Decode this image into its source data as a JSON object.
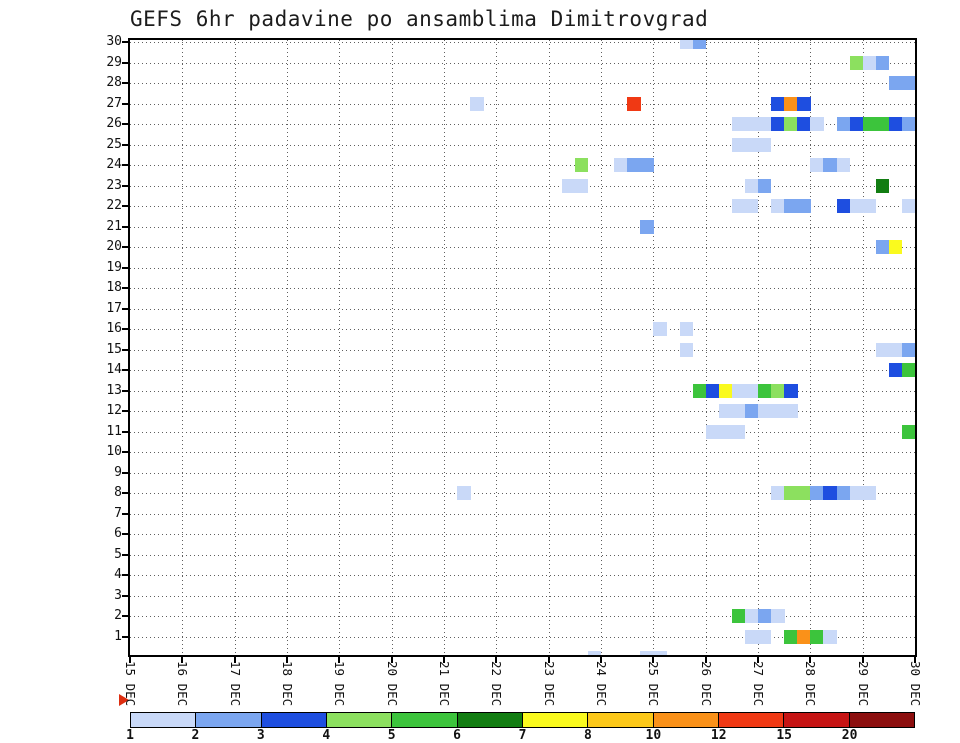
{
  "title": "GEFS 6hr padavine po ansamblima Dimitrovgrad",
  "chart_data": {
    "type": "heatmap",
    "title": "GEFS 6hr padavine po ansamblima Dimitrovgrad",
    "description": "6-hourly precipitation per GEFS ensemble member",
    "grid": true,
    "x_axis": {
      "tick_labels": [
        "15 DEC",
        "16 DEC",
        "17 DEC",
        "18 DEC",
        "19 DEC",
        "20 DEC",
        "21 DEC",
        "22 DEC",
        "23 DEC",
        "24 DEC",
        "25 DEC",
        "26 DEC",
        "27 DEC",
        "28 DEC",
        "29 DEC",
        "30 DEC"
      ],
      "steps_per_day": 4,
      "step_hours": 6,
      "total_steps": 60
    },
    "y_axis": {
      "tick_labels": [
        "30",
        "29",
        "28",
        "27",
        "26",
        "25",
        "24",
        "23",
        "22",
        "21",
        "20",
        "19",
        "18",
        "17",
        "16",
        "15",
        "14",
        "13",
        "12",
        "11",
        "10",
        "9",
        "8",
        "7",
        "6",
        "5",
        "4",
        "3",
        "2",
        "1"
      ]
    },
    "legend": {
      "position": "bottom",
      "tick_labels": [
        "1",
        "2",
        "3",
        "4",
        "5",
        "6",
        "7",
        "8",
        "10",
        "12",
        "15",
        "20"
      ],
      "colors": [
        "#c9d9f8",
        "#7ba6f0",
        "#1e4ee0",
        "#8ce05f",
        "#3cc43c",
        "#127d12",
        "#fafa1e",
        "#fcc819",
        "#fa9119",
        "#f03914",
        "#c61414",
        "#8c0f0f"
      ]
    },
    "cells_format": [
      "member",
      "step_6h_index_from_15DEC00",
      "color_level_1_to_12"
    ],
    "cells": [
      [
        30,
        42,
        1
      ],
      [
        30,
        43,
        2
      ],
      [
        29,
        55,
        4
      ],
      [
        29,
        56,
        1
      ],
      [
        29,
        57,
        2
      ],
      [
        28,
        58,
        2
      ],
      [
        28,
        59,
        2
      ],
      [
        27,
        26,
        1
      ],
      [
        27,
        38,
        10
      ],
      [
        27,
        49,
        3
      ],
      [
        27,
        50,
        9
      ],
      [
        27,
        51,
        3
      ],
      [
        26,
        46,
        1
      ],
      [
        26,
        47,
        1
      ],
      [
        26,
        48,
        1
      ],
      [
        26,
        49,
        3
      ],
      [
        26,
        50,
        4
      ],
      [
        26,
        51,
        3
      ],
      [
        26,
        52,
        1
      ],
      [
        26,
        54,
        2
      ],
      [
        26,
        55,
        3
      ],
      [
        26,
        56,
        5
      ],
      [
        26,
        57,
        5
      ],
      [
        26,
        58,
        3
      ],
      [
        26,
        59,
        2
      ],
      [
        25,
        46,
        1
      ],
      [
        25,
        47,
        1
      ],
      [
        25,
        48,
        1
      ],
      [
        24,
        34,
        4
      ],
      [
        24,
        37,
        1
      ],
      [
        24,
        38,
        2
      ],
      [
        24,
        39,
        2
      ],
      [
        24,
        52,
        1
      ],
      [
        24,
        53,
        2
      ],
      [
        24,
        54,
        1
      ],
      [
        23,
        33,
        1
      ],
      [
        23,
        34,
        1
      ],
      [
        23,
        47,
        1
      ],
      [
        23,
        48,
        2
      ],
      [
        23,
        57,
        6
      ],
      [
        22,
        46,
        1
      ],
      [
        22,
        47,
        1
      ],
      [
        22,
        49,
        1
      ],
      [
        22,
        50,
        2
      ],
      [
        22,
        51,
        2
      ],
      [
        22,
        54,
        3
      ],
      [
        22,
        55,
        1
      ],
      [
        22,
        56,
        1
      ],
      [
        22,
        59,
        1
      ],
      [
        21,
        39,
        2
      ],
      [
        20,
        57,
        2
      ],
      [
        20,
        58,
        7
      ],
      [
        16,
        40,
        1
      ],
      [
        16,
        42,
        1
      ],
      [
        15,
        42,
        1
      ],
      [
        15,
        57,
        1
      ],
      [
        15,
        58,
        1
      ],
      [
        15,
        59,
        2
      ],
      [
        14,
        58,
        3
      ],
      [
        14,
        59,
        5
      ],
      [
        13,
        43,
        5
      ],
      [
        13,
        44,
        3
      ],
      [
        13,
        45,
        7
      ],
      [
        13,
        46,
        1
      ],
      [
        13,
        47,
        1
      ],
      [
        13,
        48,
        5
      ],
      [
        13,
        49,
        4
      ],
      [
        13,
        50,
        3
      ],
      [
        12,
        45,
        1
      ],
      [
        12,
        46,
        1
      ],
      [
        12,
        47,
        2
      ],
      [
        12,
        48,
        1
      ],
      [
        12,
        49,
        1
      ],
      [
        12,
        50,
        1
      ],
      [
        11,
        44,
        1
      ],
      [
        11,
        45,
        1
      ],
      [
        11,
        46,
        1
      ],
      [
        11,
        59,
        5
      ],
      [
        8,
        25,
        1
      ],
      [
        8,
        49,
        1
      ],
      [
        8,
        50,
        4
      ],
      [
        8,
        51,
        4
      ],
      [
        8,
        52,
        2
      ],
      [
        8,
        53,
        3
      ],
      [
        8,
        54,
        2
      ],
      [
        8,
        55,
        1
      ],
      [
        8,
        56,
        1
      ],
      [
        2,
        46,
        5
      ],
      [
        2,
        47,
        1
      ],
      [
        2,
        48,
        2
      ],
      [
        2,
        49,
        1
      ],
      [
        1,
        47,
        1
      ],
      [
        1,
        48,
        1
      ],
      [
        1,
        50,
        5
      ],
      [
        1,
        51,
        9
      ],
      [
        1,
        52,
        5
      ],
      [
        1,
        53,
        1
      ],
      [
        0,
        35,
        1
      ],
      [
        0,
        39,
        1
      ],
      [
        0,
        40,
        1
      ]
    ]
  }
}
